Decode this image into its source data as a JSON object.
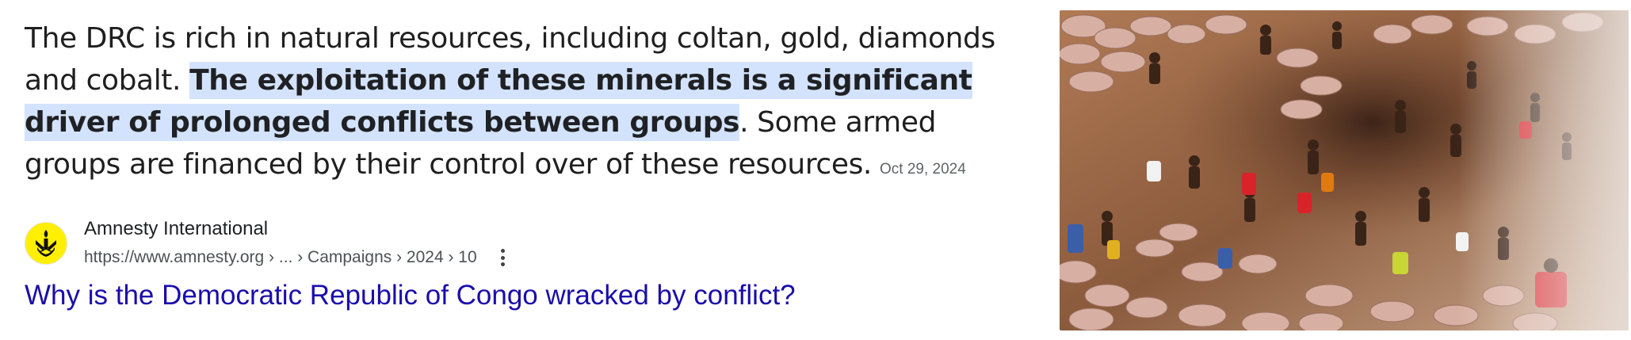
{
  "snippet": {
    "part_before": "The DRC is rich in natural resources, including coltan, gold, diamonds and cobalt. ",
    "highlighted": "The exploitation of these minerals is a significant driver of prolonged conflicts between groups",
    "part_after": ". Some armed groups are financed by their control over of these resources.",
    "date": "Oct 29, 2024"
  },
  "result": {
    "favicon_icon": "amnesty-candle-icon",
    "site_name": "Amnesty International",
    "url": "https://www.amnesty.org › ... › Campaigns › 2024 › 10",
    "more_icon": "three-dot-vertical-icon",
    "title": "Why is the Democratic Republic of Congo wracked by conflict?"
  },
  "thumbnail": {
    "icon": "mine-workers-photo"
  },
  "colors": {
    "highlight": "#d3e3fd",
    "link": "#1a0dab",
    "favicon_bg": "#ffef00"
  }
}
